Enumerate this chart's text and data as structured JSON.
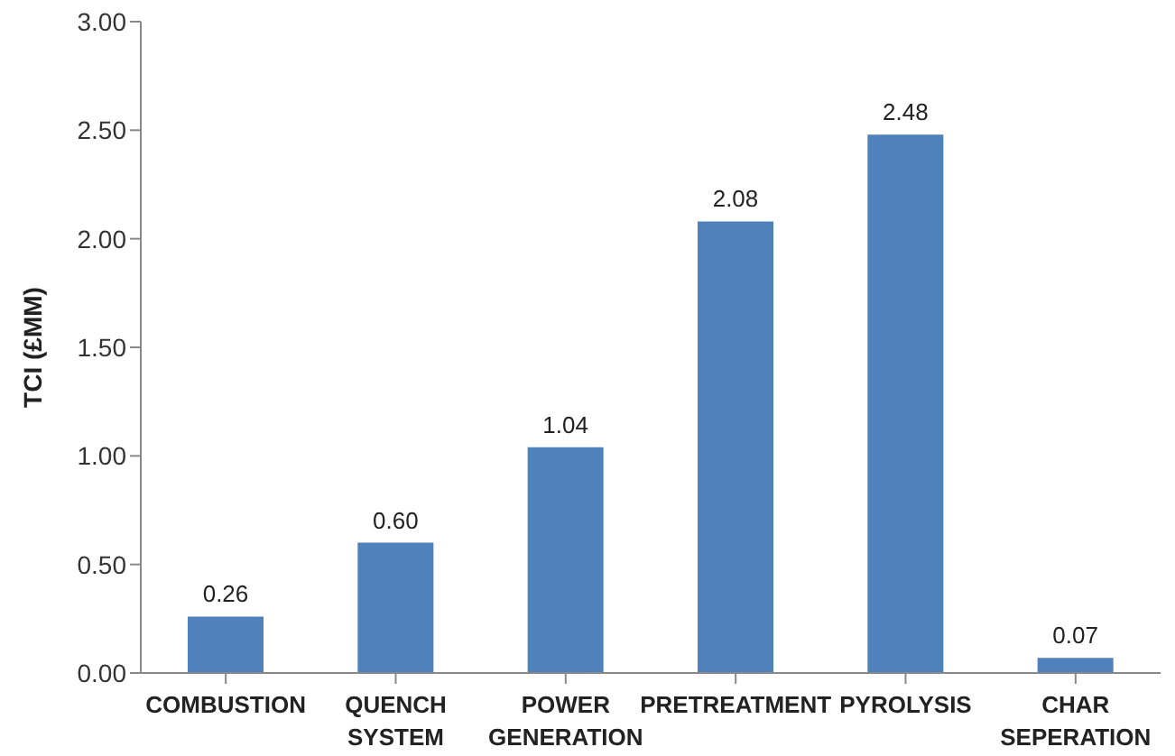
{
  "chart_data": {
    "type": "bar",
    "ylabel": "TCI (£MM)",
    "categories": [
      "COMBUSTION",
      "QUENCH SYSTEM",
      "POWER GENERATION",
      "PRETREATMENT",
      "PYROLYSIS",
      "CHAR SEPERATION"
    ],
    "values": [
      0.26,
      0.6,
      1.04,
      2.08,
      2.48,
      0.07
    ],
    "value_labels": [
      "0.26",
      "0.60",
      "1.04",
      "2.08",
      "2.48",
      "0.07"
    ],
    "color": "#4f81bd",
    "ylim": [
      0,
      3
    ],
    "yticks": [
      {
        "value": 0,
        "label": "0.00"
      },
      {
        "value": 0.5,
        "label": "0.50"
      },
      {
        "value": 1,
        "label": "1.00"
      },
      {
        "value": 1.5,
        "label": "1.50"
      },
      {
        "value": 2,
        "label": "2.00"
      },
      {
        "value": 2.5,
        "label": "2.50"
      },
      {
        "value": 3,
        "label": "3.00"
      }
    ],
    "grid": false,
    "legend": false
  }
}
